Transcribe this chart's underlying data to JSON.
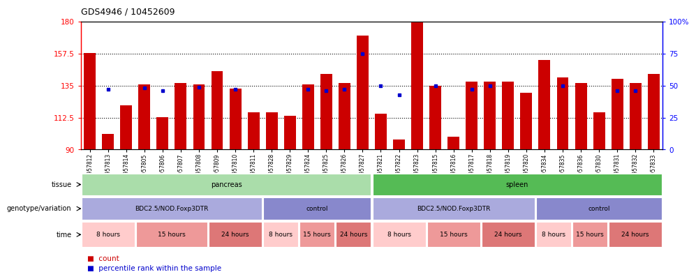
{
  "title": "GDS4946 / 10452609",
  "samples": [
    "GSM957812",
    "GSM957813",
    "GSM957814",
    "GSM957805",
    "GSM957806",
    "GSM957807",
    "GSM957808",
    "GSM957809",
    "GSM957810",
    "GSM957811",
    "GSM957828",
    "GSM957829",
    "GSM957824",
    "GSM957825",
    "GSM957826",
    "GSM957827",
    "GSM957821",
    "GSM957822",
    "GSM957823",
    "GSM957815",
    "GSM957816",
    "GSM957817",
    "GSM957818",
    "GSM957819",
    "GSM957820",
    "GSM957834",
    "GSM957835",
    "GSM957836",
    "GSM957830",
    "GSM957831",
    "GSM957832",
    "GSM957833"
  ],
  "bar_values": [
    158,
    101,
    121,
    136,
    113,
    137,
    136,
    145,
    133,
    116,
    116,
    114,
    136,
    143,
    137,
    170,
    115,
    97,
    180,
    135,
    99,
    138,
    138,
    138,
    130,
    153,
    141,
    137,
    116,
    140,
    137,
    143
  ],
  "dot_values": [
    null,
    47,
    null,
    48,
    46,
    null,
    49,
    null,
    47,
    null,
    null,
    null,
    47,
    46,
    47,
    75,
    50,
    43,
    null,
    50,
    null,
    47,
    50,
    null,
    null,
    null,
    50,
    null,
    null,
    46,
    46,
    null
  ],
  "ymin": 90,
  "ymax": 180,
  "yticks": [
    90,
    112.5,
    135,
    157.5,
    180
  ],
  "ytick_labels": [
    "90",
    "112.5",
    "135",
    "157.5",
    "180"
  ],
  "right_yticks": [
    0,
    25,
    50,
    75,
    100
  ],
  "right_ytick_labels": [
    "0",
    "25",
    "50",
    "75",
    "100%"
  ],
  "bar_color": "#cc0000",
  "dot_color": "#0000cc",
  "tissue_row": {
    "label": "tissue",
    "segments": [
      {
        "text": "pancreas",
        "start": 0,
        "end": 15,
        "color": "#aaddaa"
      },
      {
        "text": "spleen",
        "start": 16,
        "end": 31,
        "color": "#55bb55"
      }
    ]
  },
  "genotype_row": {
    "label": "genotype/variation",
    "segments": [
      {
        "text": "BDC2.5/NOD.Foxp3DTR",
        "start": 0,
        "end": 9,
        "color": "#aaaadd"
      },
      {
        "text": "control",
        "start": 10,
        "end": 15,
        "color": "#8888cc"
      },
      {
        "text": "BDC2.5/NOD.Foxp3DTR",
        "start": 16,
        "end": 24,
        "color": "#aaaadd"
      },
      {
        "text": "control",
        "start": 25,
        "end": 31,
        "color": "#8888cc"
      }
    ]
  },
  "time_row": {
    "label": "time",
    "segments": [
      {
        "text": "8 hours",
        "start": 0,
        "end": 2,
        "color": "#ffcccc"
      },
      {
        "text": "15 hours",
        "start": 3,
        "end": 6,
        "color": "#ee9999"
      },
      {
        "text": "24 hours",
        "start": 7,
        "end": 9,
        "color": "#dd7777"
      },
      {
        "text": "8 hours",
        "start": 10,
        "end": 11,
        "color": "#ffcccc"
      },
      {
        "text": "15 hours",
        "start": 12,
        "end": 13,
        "color": "#ee9999"
      },
      {
        "text": "24 hours",
        "start": 14,
        "end": 15,
        "color": "#dd7777"
      },
      {
        "text": "8 hours",
        "start": 16,
        "end": 18,
        "color": "#ffcccc"
      },
      {
        "text": "15 hours",
        "start": 19,
        "end": 21,
        "color": "#ee9999"
      },
      {
        "text": "24 hours",
        "start": 22,
        "end": 24,
        "color": "#dd7777"
      },
      {
        "text": "8 hours",
        "start": 25,
        "end": 26,
        "color": "#ffcccc"
      },
      {
        "text": "15 hours",
        "start": 27,
        "end": 28,
        "color": "#ee9999"
      },
      {
        "text": "24 hours",
        "start": 29,
        "end": 31,
        "color": "#dd7777"
      }
    ]
  }
}
